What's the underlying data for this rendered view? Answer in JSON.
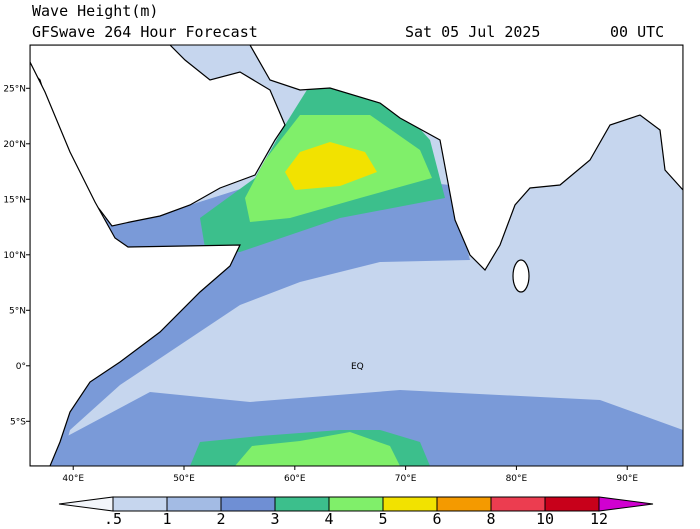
{
  "header": {
    "title": "Wave Height(m)",
    "subtitle": "GFSwave 264 Hour Forecast",
    "date": "Sat 05 Jul 2025",
    "time": "00 UTC"
  },
  "map": {
    "lon_ticks": [
      {
        "value": 40,
        "label": "40°E"
      },
      {
        "value": 50,
        "label": "50°E"
      },
      {
        "value": 60,
        "label": "60°E"
      },
      {
        "value": 70,
        "label": "70°E"
      },
      {
        "value": 80,
        "label": "80°E"
      },
      {
        "value": 90,
        "label": "90°E"
      }
    ],
    "lat_ticks": [
      {
        "value": 25,
        "label": "25°N"
      },
      {
        "value": 20,
        "label": "20°N"
      },
      {
        "value": 15,
        "label": "15°N"
      },
      {
        "value": 10,
        "label": "10°N"
      },
      {
        "value": 5,
        "label": "5°N"
      },
      {
        "value": 0,
        "label": "0°"
      },
      {
        "value": -5,
        "label": "5°S"
      }
    ],
    "annotation": "EQ"
  },
  "colorbar": {
    "levels": [
      {
        "value": 0.5,
        "label": ".5"
      },
      1,
      2,
      3,
      4,
      5,
      6,
      8,
      10,
      12
    ],
    "colors": [
      "#f2f5fa",
      "#c6d6ee",
      "#a3bbe4",
      "#6f8fd4",
      "#3cbf8c",
      "#80ef6a",
      "#f2e200",
      "#f49a00",
      "#ec3d50",
      "#c8001a",
      "#d000d0"
    ]
  }
}
